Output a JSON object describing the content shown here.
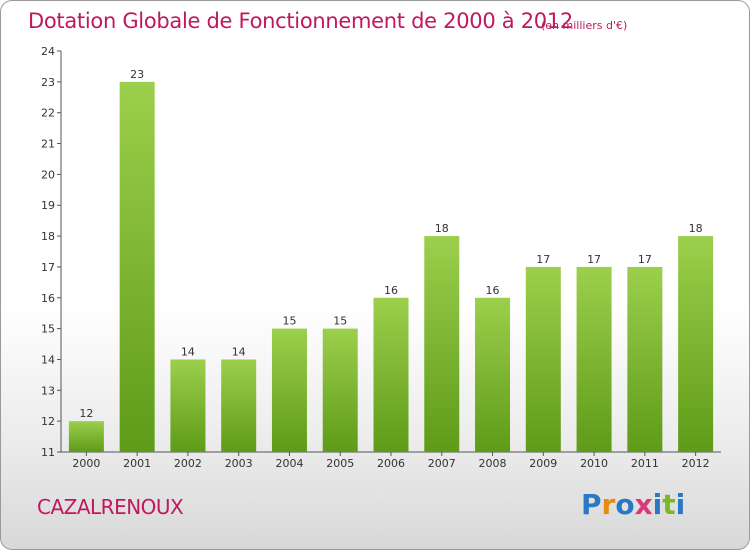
{
  "title": "Dotation Globale de Fonctionnement de 2000 à 2012",
  "unit_label": "(en milliers d'€)",
  "town": "CAZALRENOUX",
  "logo": {
    "text": "Proxiti",
    "colors": [
      "#2a78c5",
      "#e68a12",
      "#2a78c5",
      "#d63a7a",
      "#2a78c5",
      "#7ab82a",
      "#2a78c5"
    ]
  },
  "colors": {
    "bar_top": "#9ccf4c",
    "bar_bottom": "#5e9b18",
    "title": "#c0185f"
  },
  "chart_data": {
    "type": "bar",
    "categories": [
      "2000",
      "2001",
      "2002",
      "2003",
      "2004",
      "2005",
      "2006",
      "2007",
      "2008",
      "2009",
      "2010",
      "2011",
      "2012"
    ],
    "values": [
      12,
      23,
      14,
      14,
      15,
      15,
      16,
      18,
      16,
      17,
      17,
      17,
      18
    ],
    "ylim": [
      11,
      24
    ],
    "yticks": [
      11,
      12,
      13,
      14,
      15,
      16,
      17,
      18,
      19,
      20,
      21,
      22,
      23,
      24
    ],
    "grid": false
  }
}
